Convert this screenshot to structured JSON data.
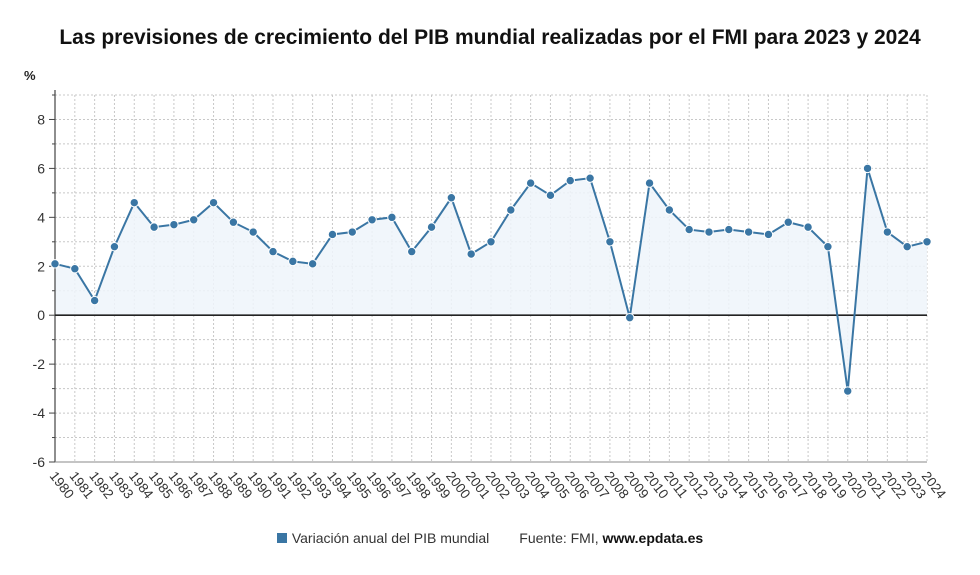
{
  "chart_data": {
    "type": "area",
    "title": "Las previsiones de crecimiento del PIB mundial realizadas por el FMI para 2023 y 2024",
    "ylabel": "%",
    "ylim": [
      -6,
      9
    ],
    "yticks": [
      -6,
      -4,
      -2,
      0,
      2,
      4,
      6,
      8
    ],
    "grid": true,
    "legend_position": "bottom",
    "x": [
      "1980",
      "1981",
      "1982",
      "1983",
      "1984",
      "1985",
      "1986",
      "1987",
      "1988",
      "1989",
      "1990",
      "1991",
      "1992",
      "1993",
      "1994",
      "1995",
      "1996",
      "1997",
      "1998",
      "1999",
      "2000",
      "2001",
      "2002",
      "2003",
      "2004",
      "2005",
      "2006",
      "2007",
      "2008",
      "2009",
      "2010",
      "2011",
      "2012",
      "2013",
      "2014",
      "2015",
      "2016",
      "2017",
      "2018",
      "2019",
      "2020",
      "2021",
      "2022",
      "2023",
      "2024"
    ],
    "series": [
      {
        "name": "Variación anual del PIB mundial",
        "color": "#3a76a4",
        "values": [
          2.1,
          1.9,
          0.6,
          2.8,
          4.6,
          3.6,
          3.7,
          3.9,
          4.6,
          3.8,
          3.4,
          2.6,
          2.2,
          2.1,
          3.3,
          3.4,
          3.9,
          4.0,
          2.6,
          3.6,
          4.8,
          2.5,
          3.0,
          4.3,
          5.4,
          4.9,
          5.5,
          5.6,
          3.0,
          -0.1,
          5.4,
          4.3,
          3.5,
          3.4,
          3.5,
          3.4,
          3.3,
          3.8,
          3.6,
          2.8,
          -3.1,
          6.0,
          3.4,
          2.8,
          3.0
        ]
      }
    ]
  },
  "footer": {
    "legend_label": "Variación anual del PIB mundial",
    "source_prefix": "Fuente: FMI, ",
    "source_site": "www.epdata.es"
  }
}
